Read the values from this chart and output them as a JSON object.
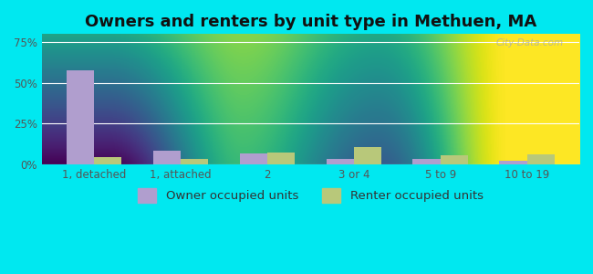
{
  "title": "Owners and renters by unit type in Methuen, MA",
  "categories": [
    "1, detached",
    "1, attached",
    "2",
    "3 or 4",
    "5 to 9",
    "10 to 19"
  ],
  "owner_values": [
    57.5,
    8.5,
    6.5,
    3.5,
    3.5,
    2.0
  ],
  "renter_values": [
    4.5,
    3.0,
    7.0,
    10.5,
    5.5,
    6.0
  ],
  "owner_color": "#b09ece",
  "renter_color": "#b8c87a",
  "background_outer": "#00e8f0",
  "background_plot_top": "#e8f5e9",
  "background_plot_bottom": "#c8edd8",
  "title_fontsize": 13,
  "tick_fontsize": 8.5,
  "legend_fontsize": 9.5,
  "ylim": [
    0,
    80
  ],
  "yticks": [
    0,
    25,
    50,
    75
  ],
  "ytick_labels": [
    "0%",
    "25%",
    "50%",
    "75%"
  ],
  "bar_width": 0.32,
  "watermark": "City-Data.com"
}
